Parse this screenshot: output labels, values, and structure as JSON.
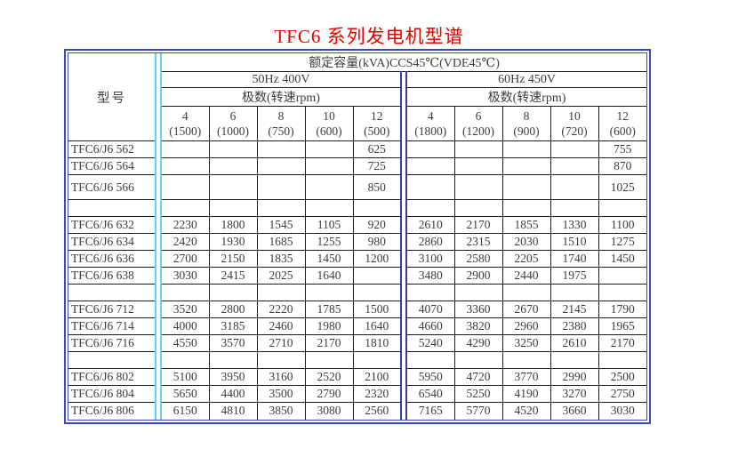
{
  "page": {
    "title": "TFC6 系列发电机型谱"
  },
  "colors": {
    "title_red": "#e60000",
    "outer_border": "#3a49b8",
    "stripe_blue": "#66ccff",
    "divider_blue": "#3340a0",
    "grid": "#1c1c1c",
    "text": "#3d3d3d"
  },
  "table": {
    "model_header": "型号",
    "capacity_header": "额定容量(kVA)CCS45℃(VDE45℃)",
    "groups": [
      {
        "label": "50Hz 400V",
        "poles_label": "极数(转速rpm)",
        "columns": [
          {
            "poles": "4",
            "rpm": "(1500)"
          },
          {
            "poles": "6",
            "rpm": "(1000)"
          },
          {
            "poles": "8",
            "rpm": "(750)"
          },
          {
            "poles": "10",
            "rpm": "(600)"
          },
          {
            "poles": "12",
            "rpm": "(500)"
          }
        ]
      },
      {
        "label": "60Hz 450V",
        "poles_label": "极数(转速rpm)",
        "columns": [
          {
            "poles": "4",
            "rpm": "(1800)"
          },
          {
            "poles": "6",
            "rpm": "(1200)"
          },
          {
            "poles": "8",
            "rpm": "(900)"
          },
          {
            "poles": "10",
            "rpm": "(720)"
          },
          {
            "poles": "12",
            "rpm": "(600)"
          }
        ]
      }
    ],
    "rows": [
      {
        "model": "TFC6/J6 562",
        "hz50": [
          "",
          "",
          "",
          "",
          "625"
        ],
        "hz60": [
          "",
          "",
          "",
          "",
          "755"
        ]
      },
      {
        "model": "TFC6/J6 564",
        "hz50": [
          "",
          "",
          "",
          "",
          "725"
        ],
        "hz60": [
          "",
          "",
          "",
          "",
          "870"
        ]
      },
      {
        "model": "TFC6/J6 566",
        "tall": true,
        "hz50": [
          "",
          "",
          "",
          "",
          "850"
        ],
        "hz60": [
          "",
          "",
          "",
          "",
          "1025"
        ]
      },
      {
        "separator": true
      },
      {
        "model": "TFC6/J6 632",
        "hz50": [
          "2230",
          "1800",
          "1545",
          "1105",
          "920"
        ],
        "hz60": [
          "2610",
          "2170",
          "1855",
          "1330",
          "1100"
        ]
      },
      {
        "model": "TFC6/J6 634",
        "hz50": [
          "2420",
          "1930",
          "1685",
          "1255",
          "980"
        ],
        "hz60": [
          "2860",
          "2315",
          "2030",
          "1510",
          "1275"
        ]
      },
      {
        "model": "TFC6/J6 636",
        "hz50": [
          "2700",
          "2150",
          "1835",
          "1450",
          "1200"
        ],
        "hz60": [
          "3100",
          "2580",
          "2205",
          "1740",
          "1450"
        ]
      },
      {
        "model": "TFC6/J6 638",
        "hz50": [
          "3030",
          "2415",
          "2025",
          "1640",
          ""
        ],
        "hz60": [
          "3480",
          "2900",
          "2440",
          "1975",
          ""
        ]
      },
      {
        "separator": true
      },
      {
        "model": "TFC6/J6 712",
        "hz50": [
          "3520",
          "2800",
          "2220",
          "1785",
          "1500"
        ],
        "hz60": [
          "4070",
          "3360",
          "2670",
          "2145",
          "1790"
        ]
      },
      {
        "model": "TFC6/J6 714",
        "hz50": [
          "4000",
          "3185",
          "2460",
          "1980",
          "1640"
        ],
        "hz60": [
          "4660",
          "3820",
          "2960",
          "2380",
          "1965"
        ]
      },
      {
        "model": "TFC6/J6 716",
        "hz50": [
          "4550",
          "3570",
          "2710",
          "2170",
          "1810"
        ],
        "hz60": [
          "5240",
          "4290",
          "3250",
          "2610",
          "2170"
        ]
      },
      {
        "separator": true
      },
      {
        "model": "TFC6/J6 802",
        "hz50": [
          "5100",
          "3950",
          "3160",
          "2520",
          "2100"
        ],
        "hz60": [
          "5950",
          "4720",
          "3770",
          "2990",
          "2500"
        ]
      },
      {
        "model": "TFC6/J6 804",
        "hz50": [
          "5650",
          "4400",
          "3500",
          "2790",
          "2320"
        ],
        "hz60": [
          "6540",
          "5250",
          "4190",
          "3270",
          "2750"
        ]
      },
      {
        "model": "TFC6/J6 806",
        "hz50": [
          "6150",
          "4810",
          "3850",
          "3080",
          "2560"
        ],
        "hz60": [
          "7165",
          "5770",
          "4520",
          "3660",
          "3030"
        ]
      }
    ]
  }
}
